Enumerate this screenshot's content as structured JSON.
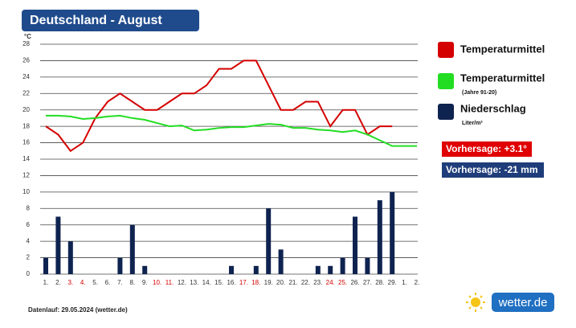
{
  "chart_data": {
    "type": "combo",
    "title": "Deutschland - August",
    "y_label": "°C",
    "categories": [
      "1.",
      "2.",
      "3.",
      "4.",
      "5.",
      "6.",
      "7.",
      "8.",
      "9.",
      "10.",
      "11.",
      "12.",
      "13.",
      "14.",
      "15.",
      "16.",
      "17.",
      "18.",
      "19.",
      "20.",
      "21.",
      "22.",
      "23.",
      "24.",
      "25.",
      "26.",
      "27.",
      "28.",
      "29.",
      "1.",
      "2."
    ],
    "category_colors": [
      "#333333",
      "#333333",
      "#d40000",
      "#d40000",
      "#333333",
      "#333333",
      "#333333",
      "#333333",
      "#333333",
      "#d40000",
      "#d40000",
      "#333333",
      "#333333",
      "#333333",
      "#333333",
      "#333333",
      "#d40000",
      "#d40000",
      "#333333",
      "#333333",
      "#333333",
      "#333333",
      "#333333",
      "#d40000",
      "#d40000",
      "#333333",
      "#333333",
      "#333333",
      "#333333",
      "#333333",
      "#333333"
    ],
    "ylim": [
      0,
      28
    ],
    "yticks": [
      0,
      2,
      4,
      6,
      8,
      10,
      12,
      14,
      16,
      18,
      20,
      22,
      24,
      26,
      28
    ],
    "grid": true,
    "series": [
      {
        "name": "Temperaturmittel",
        "type": "line",
        "color": "#d40000",
        "values": [
          18,
          17,
          15,
          16,
          19,
          21,
          22,
          21,
          20,
          20,
          21,
          22,
          22,
          23,
          25,
          25,
          26,
          26,
          23,
          20,
          20,
          21,
          21,
          18,
          20,
          20,
          17,
          18,
          18,
          null,
          null
        ]
      },
      {
        "name": "Temperaturmittel",
        "legend_note": "(Jahre 91-20)",
        "type": "line",
        "color": "#22dd22",
        "values": [
          19.3,
          19.3,
          19.2,
          18.9,
          19,
          19.2,
          19.3,
          19,
          18.8,
          18.4,
          18,
          18.1,
          17.5,
          17.6,
          17.8,
          17.9,
          17.9,
          18.1,
          18.3,
          18.2,
          17.8,
          17.8,
          17.6,
          17.5,
          17.3,
          17.5,
          17,
          16.3,
          15.6,
          15.6,
          15.6
        ]
      },
      {
        "name": "Niederschlag",
        "legend_note": "Liter/m²",
        "type": "bar",
        "color": "#0f2350",
        "values": [
          2,
          7,
          4,
          0,
          0,
          0,
          2,
          6,
          1,
          0,
          0,
          0,
          0,
          0,
          0,
          1,
          0,
          1,
          8,
          3,
          0,
          0,
          1,
          1,
          2,
          7,
          2,
          9,
          10,
          null,
          null
        ]
      }
    ],
    "annotations": [
      {
        "text": "Vorhersage: +3.1°",
        "color": "#e00000"
      },
      {
        "text": "Vorhersage: -21 mm",
        "color": "#1f3d7a"
      }
    ],
    "source": "Datenlauf: 29.05.2024 (wetter.de)"
  },
  "logo": "wetter.de"
}
